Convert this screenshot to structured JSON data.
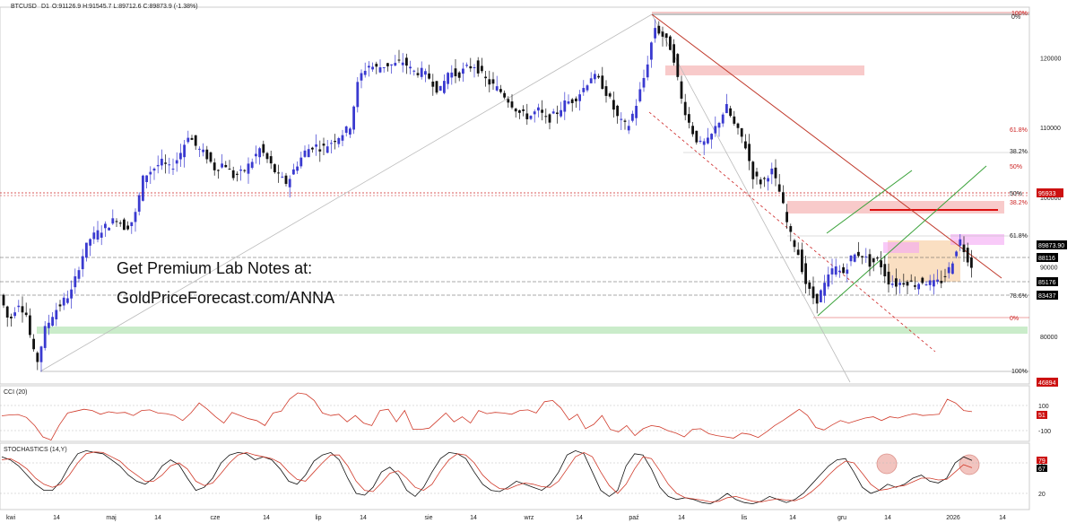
{
  "header": {
    "symbol": "BTCUSD",
    "timeframe": "D1",
    "ohlc": "O:91126.9 H:91545.7 L:89712.6 C:89873.9 (-1.38%)"
  },
  "promo": {
    "line1": "Get Premium Lab Notes at:",
    "line2": "GoldPriceForecast.com/ANNA"
  },
  "colors": {
    "bull": "#3a3ad0",
    "bear": "#111111",
    "redLine": "#c0392b",
    "greenLine": "#3aa23a",
    "fibRed": "#cc2222",
    "gray": "#999999",
    "resistZone": "#f4a6a6",
    "supportZone": "#a6e0a6",
    "orangeZone": "#f7c99a",
    "magentaZone": "#f3a6f3",
    "badgeBlack": "#000000",
    "badgeRed": "#cc1111"
  },
  "chart_data": {
    "type": "candlestick",
    "y_ticks": [
      80000,
      90000,
      100000,
      110000,
      120000
    ],
    "ylim": [
      75000,
      126500
    ],
    "x_ticks": [
      "kwi",
      "14",
      "maj",
      "14",
      "cze",
      "14",
      "lip",
      "14",
      "sie",
      "14",
      "wrz",
      "14",
      "paź",
      "14",
      "lis",
      "14",
      "gru",
      "14",
      "2026",
      "14"
    ],
    "price_path": [
      [
        0,
        86000
      ],
      [
        10,
        82000
      ],
      [
        20,
        85000
      ],
      [
        30,
        83000
      ],
      [
        36,
        78000
      ],
      [
        42,
        76500
      ],
      [
        50,
        81000
      ],
      [
        60,
        83500
      ],
      [
        70,
        85000
      ],
      [
        80,
        86500
      ],
      [
        90,
        91000
      ],
      [
        100,
        94000
      ],
      [
        110,
        95000
      ],
      [
        120,
        96000
      ],
      [
        130,
        97000
      ],
      [
        140,
        95500
      ],
      [
        150,
        97000
      ],
      [
        160,
        103000
      ],
      [
        170,
        104000
      ],
      [
        180,
        105000
      ],
      [
        190,
        104000
      ],
      [
        200,
        106000
      ],
      [
        210,
        109000
      ],
      [
        220,
        107000
      ],
      [
        230,
        106000
      ],
      [
        240,
        104000
      ],
      [
        250,
        105000
      ],
      [
        260,
        103000
      ],
      [
        270,
        103500
      ],
      [
        280,
        105000
      ],
      [
        290,
        107000
      ],
      [
        300,
        105000
      ],
      [
        310,
        103000
      ],
      [
        320,
        102000
      ],
      [
        330,
        104500
      ],
      [
        340,
        106500
      ],
      [
        350,
        107500
      ],
      [
        360,
        107000
      ],
      [
        370,
        108000
      ],
      [
        380,
        109000
      ],
      [
        390,
        110000
      ],
      [
        400,
        117000
      ],
      [
        410,
        119000
      ],
      [
        420,
        118500
      ],
      [
        430,
        119000
      ],
      [
        440,
        119000
      ],
      [
        450,
        119500
      ],
      [
        460,
        118000
      ],
      [
        470,
        118000
      ],
      [
        480,
        117000
      ],
      [
        490,
        115000
      ],
      [
        500,
        118000
      ],
      [
        510,
        117500
      ],
      [
        520,
        118500
      ],
      [
        530,
        119000
      ],
      [
        540,
        117000
      ],
      [
        550,
        116000
      ],
      [
        560,
        115000
      ],
      [
        570,
        113500
      ],
      [
        580,
        112000
      ],
      [
        590,
        111500
      ],
      [
        600,
        112500
      ],
      [
        610,
        111000
      ],
      [
        620,
        112000
      ],
      [
        630,
        113500
      ],
      [
        640,
        114000
      ],
      [
        650,
        115500
      ],
      [
        660,
        117500
      ],
      [
        670,
        116500
      ],
      [
        680,
        114000
      ],
      [
        690,
        111000
      ],
      [
        700,
        110000
      ],
      [
        710,
        113500
      ],
      [
        720,
        118000
      ],
      [
        730,
        124500
      ],
      [
        740,
        123000
      ],
      [
        750,
        121000
      ],
      [
        760,
        114000
      ],
      [
        770,
        110000
      ],
      [
        780,
        107500
      ],
      [
        790,
        108000
      ],
      [
        800,
        110500
      ],
      [
        810,
        113000
      ],
      [
        820,
        110000
      ],
      [
        830,
        108000
      ],
      [
        840,
        103000
      ],
      [
        850,
        102000
      ],
      [
        860,
        104000
      ],
      [
        870,
        100500
      ],
      [
        880,
        95000
      ],
      [
        890,
        92000
      ],
      [
        900,
        87000
      ],
      [
        910,
        85000
      ],
      [
        920,
        87500
      ],
      [
        930,
        90000
      ],
      [
        940,
        89000
      ],
      [
        950,
        91500
      ],
      [
        960,
        92000
      ],
      [
        970,
        90500
      ],
      [
        980,
        91000
      ],
      [
        990,
        88000
      ],
      [
        1000,
        87500
      ],
      [
        1010,
        88000
      ],
      [
        1020,
        87500
      ],
      [
        1030,
        88000
      ],
      [
        1040,
        87500
      ],
      [
        1050,
        88000
      ],
      [
        1060,
        90000
      ],
      [
        1070,
        94000
      ],
      [
        1080,
        91000
      ],
      [
        1085,
        89873.9
      ]
    ],
    "fib_labels_upper": [
      "100%",
      "0%",
      "61.8%",
      "38.2%",
      "50%",
      "50%",
      "38.2%",
      "61.8%",
      "78.6%",
      "0%",
      "100%"
    ],
    "price_badges": [
      "95933",
      "89873.90",
      "88116",
      "85176",
      "83437",
      "46894"
    ],
    "indicators": [
      {
        "name": "CCI (20)",
        "levels": [
          "100",
          "-100"
        ],
        "last_value": "51",
        "values": [
          18,
          25,
          28,
          5,
          -60,
          -150,
          -175,
          -55,
          40,
          55,
          70,
          60,
          30,
          50,
          40,
          45,
          20,
          60,
          65,
          40,
          35,
          20,
          -20,
          40,
          120,
          70,
          10,
          -40,
          45,
          20,
          -5,
          -20,
          -60,
          40,
          55,
          150,
          200,
          190,
          140,
          40,
          20,
          30,
          -30,
          20,
          -40,
          -60,
          60,
          70,
          -30,
          60,
          -90,
          -90,
          -80,
          -20,
          40,
          -30,
          10,
          -40,
          60,
          35,
          45,
          40,
          30,
          60,
          65,
          40,
          130,
          140,
          80,
          -15,
          30,
          -85,
          -50,
          20,
          -90,
          -110,
          -60,
          -140,
          -85,
          -60,
          -70,
          -100,
          -120,
          -150,
          -90,
          -85,
          -125,
          -140,
          -150,
          -160,
          -120,
          -130,
          -155,
          -110,
          -60,
          -20,
          25,
          70,
          20,
          -75,
          -95,
          -55,
          -20,
          -40,
          -20,
          0,
          10,
          -20,
          10,
          0,
          20,
          35,
          20,
          25,
          30,
          150,
          120,
          60,
          51
        ]
      },
      {
        "name": "STOCHASTICS (14,Y)",
        "levels": [
          "80",
          "20"
        ],
        "last_value_k": "79",
        "last_value_d": "67",
        "k": [
          85,
          80,
          70,
          55,
          40,
          30,
          30,
          45,
          70,
          90,
          95,
          92,
          90,
          80,
          70,
          55,
          45,
          40,
          50,
          70,
          80,
          72,
          50,
          30,
          35,
          50,
          75,
          88,
          92,
          90,
          80,
          85,
          80,
          65,
          45,
          40,
          55,
          78,
          88,
          92,
          80,
          50,
          25,
          22,
          35,
          60,
          68,
          55,
          30,
          20,
          35,
          60,
          82,
          92,
          90,
          82,
          60,
          40,
          30,
          28,
          35,
          45,
          40,
          35,
          30,
          40,
          60,
          88,
          95,
          90,
          60,
          30,
          20,
          30,
          70,
          90,
          88,
          65,
          35,
          20,
          15,
          18,
          15,
          10,
          8,
          15,
          25,
          15,
          10,
          8,
          12,
          20,
          15,
          10,
          15,
          25,
          40,
          55,
          70,
          80,
          82,
          60,
          35,
          25,
          30,
          40,
          35,
          40,
          50,
          55,
          45,
          42,
          50,
          75,
          85,
          79
        ],
        "d": [
          80,
          82,
          75,
          65,
          50,
          40,
          35,
          40,
          55,
          75,
          90,
          93,
          92,
          85,
          78,
          65,
          55,
          45,
          45,
          55,
          70,
          75,
          65,
          45,
          38,
          42,
          58,
          75,
          88,
          92,
          88,
          85,
          82,
          75,
          60,
          48,
          45,
          60,
          75,
          88,
          88,
          70,
          45,
          30,
          28,
          42,
          58,
          62,
          50,
          35,
          30,
          40,
          62,
          80,
          90,
          88,
          75,
          55,
          42,
          33,
          32,
          38,
          42,
          40,
          36,
          35,
          45,
          65,
          85,
          92,
          85,
          60,
          38,
          25,
          40,
          65,
          85,
          82,
          62,
          40,
          25,
          18,
          16,
          14,
          11,
          12,
          18,
          20,
          16,
          12,
          11,
          14,
          16,
          14,
          13,
          18,
          28,
          40,
          55,
          68,
          78,
          75,
          58,
          40,
          30,
          32,
          36,
          38,
          44,
          50,
          50,
          47,
          48,
          60,
          72,
          67
        ]
      }
    ]
  }
}
